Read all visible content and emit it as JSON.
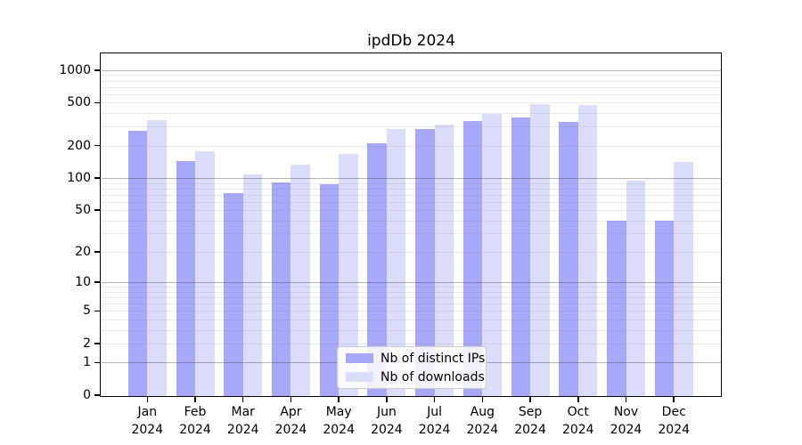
{
  "title": "ipdDb 2024",
  "chart_data": {
    "type": "bar",
    "title": "ipdDb 2024",
    "categories": [
      "Jan",
      "Feb",
      "Mar",
      "Apr",
      "May",
      "Jun",
      "Jul",
      "Aug",
      "Sep",
      "Oct",
      "Nov",
      "Dec"
    ],
    "x_tick_year": "2024",
    "series": [
      {
        "name": "Nb of distinct IPs",
        "color": "#a8a8fa",
        "values": [
          276,
          145,
          72,
          91,
          88,
          210,
          285,
          339,
          365,
          334,
          40,
          40
        ]
      },
      {
        "name": "Nb of downloads",
        "color": "#dcdcfb",
        "values": [
          345,
          177,
          108,
          133,
          167,
          284,
          314,
          394,
          485,
          480,
          95,
          140
        ]
      }
    ],
    "y_scale": "log1p",
    "y_ticks": [
      0,
      1,
      2,
      5,
      10,
      20,
      50,
      100,
      200,
      500,
      1000
    ],
    "y_major_gridlines": [
      1,
      10,
      100,
      1000
    ],
    "y_axis_max": 1400,
    "grid": "major+minor, drawn over bars",
    "legend_position": "inside-bottom-center",
    "xlabel": "",
    "ylabel": ""
  },
  "legend": {
    "items": [
      {
        "label": "Nb of distinct IPs"
      },
      {
        "label": "Nb of downloads"
      }
    ]
  },
  "colors": {
    "bar_dark": "#a8a8fa",
    "bar_light": "#dcdcfb",
    "major_grid": "#b0b0b0",
    "minor_grid": "#e4e4e4",
    "spine": "#000000",
    "background": "#ffffff"
  }
}
